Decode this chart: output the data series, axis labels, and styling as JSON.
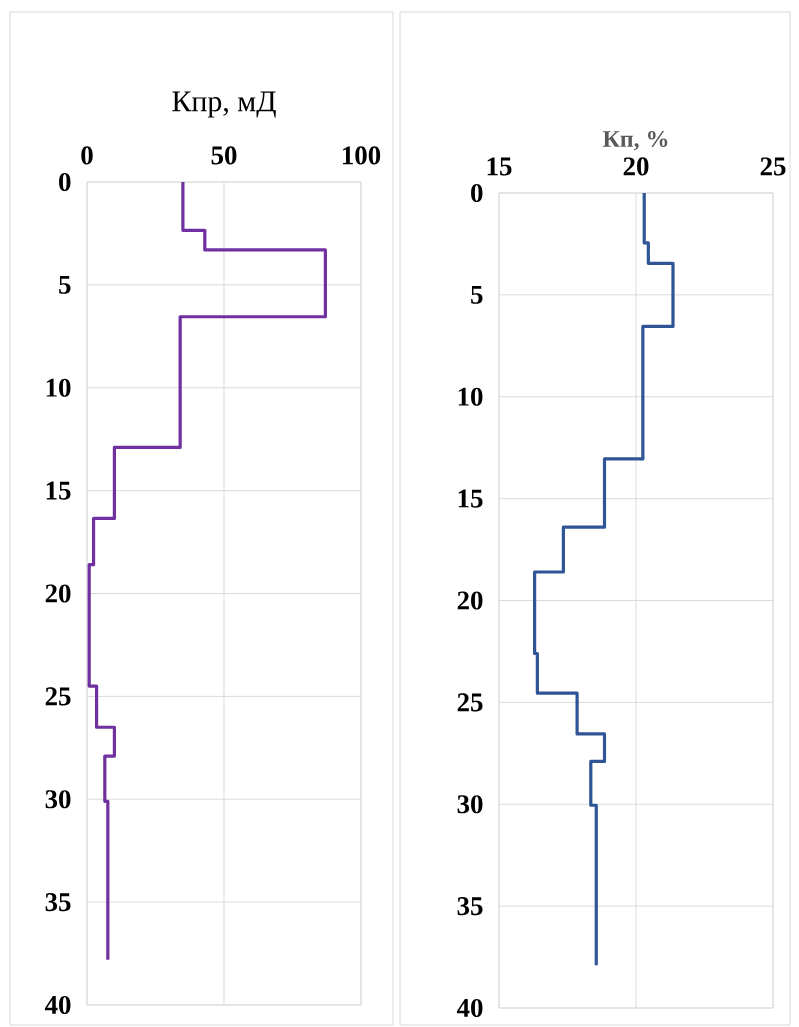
{
  "chart_data": [
    {
      "type": "line",
      "xlabel": "Кпр, мД",
      "xlim": [
        0,
        100
      ],
      "xticks": [
        0,
        50,
        100
      ],
      "ylim": [
        40,
        0
      ],
      "yticks": [
        0,
        5,
        10,
        15,
        20,
        25,
        30,
        35,
        40
      ],
      "grid": true,
      "series": [
        {
          "color": "#7030a0",
          "x": [
            35,
            35,
            43,
            43,
            87,
            87,
            34,
            34,
            10,
            10,
            2.4,
            2.4,
            0.8,
            0.8,
            3.5,
            3.5,
            10,
            10,
            6.5,
            6.5,
            7.6,
            7.6
          ],
          "values": [
            0,
            2.35,
            2.35,
            3.3,
            3.3,
            6.55,
            6.55,
            12.9,
            12.9,
            16.35,
            16.35,
            18.6,
            18.6,
            24.5,
            24.5,
            26.5,
            26.5,
            27.9,
            27.9,
            30.1,
            30.1,
            37.8
          ]
        }
      ]
    },
    {
      "type": "line",
      "xlabel": "Кп, %",
      "xlim": [
        15,
        25
      ],
      "xticks": [
        15,
        20,
        25
      ],
      "ylim": [
        40,
        0
      ],
      "yticks": [
        0,
        5,
        10,
        15,
        20,
        25,
        30,
        35,
        40
      ],
      "grid": true,
      "series": [
        {
          "color": "#2f5597",
          "x": [
            20.3,
            20.3,
            20.45,
            20.45,
            21.35,
            21.35,
            20.25,
            20.25,
            18.85,
            18.85,
            17.35,
            17.35,
            16.3,
            16.3,
            16.4,
            16.4,
            17.85,
            17.85,
            18.85,
            18.85,
            18.35,
            18.35,
            18.55,
            18.55
          ],
          "values": [
            0,
            2.45,
            2.45,
            3.45,
            3.45,
            6.55,
            6.55,
            13.05,
            13.05,
            16.4,
            16.4,
            18.6,
            18.6,
            22.6,
            22.6,
            24.55,
            24.55,
            26.55,
            26.55,
            27.9,
            27.9,
            30.05,
            30.05,
            37.9
          ]
        }
      ]
    }
  ]
}
